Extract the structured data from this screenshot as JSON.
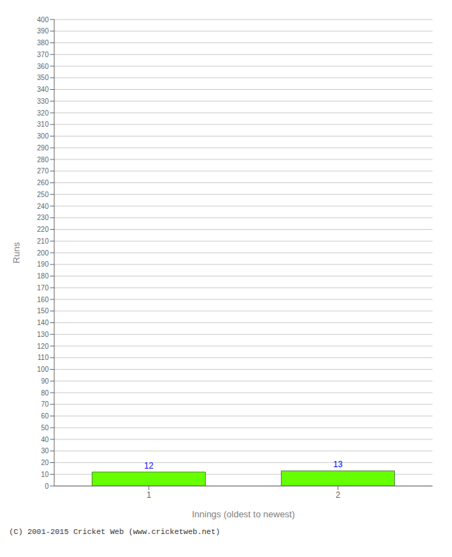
{
  "chart_data": {
    "type": "bar",
    "xlabel": "Innings (oldest to newest)",
    "ylabel": "Runs",
    "categories": [
      "1",
      "2"
    ],
    "values": [
      12,
      13
    ],
    "color": "#66ff00",
    "ylim": [
      0,
      400
    ],
    "yticks": [
      0,
      10,
      20,
      30,
      40,
      50,
      60,
      70,
      80,
      90,
      100,
      110,
      120,
      130,
      140,
      150,
      160,
      170,
      180,
      190,
      200,
      210,
      220,
      230,
      240,
      250,
      260,
      270,
      280,
      290,
      300,
      310,
      320,
      330,
      340,
      350,
      360,
      370,
      380,
      390,
      400
    ],
    "grid": true,
    "data_labels": true,
    "annotations": [
      "(C) 2001-2015 Cricket Web (www.cricketweb.net)"
    ]
  }
}
